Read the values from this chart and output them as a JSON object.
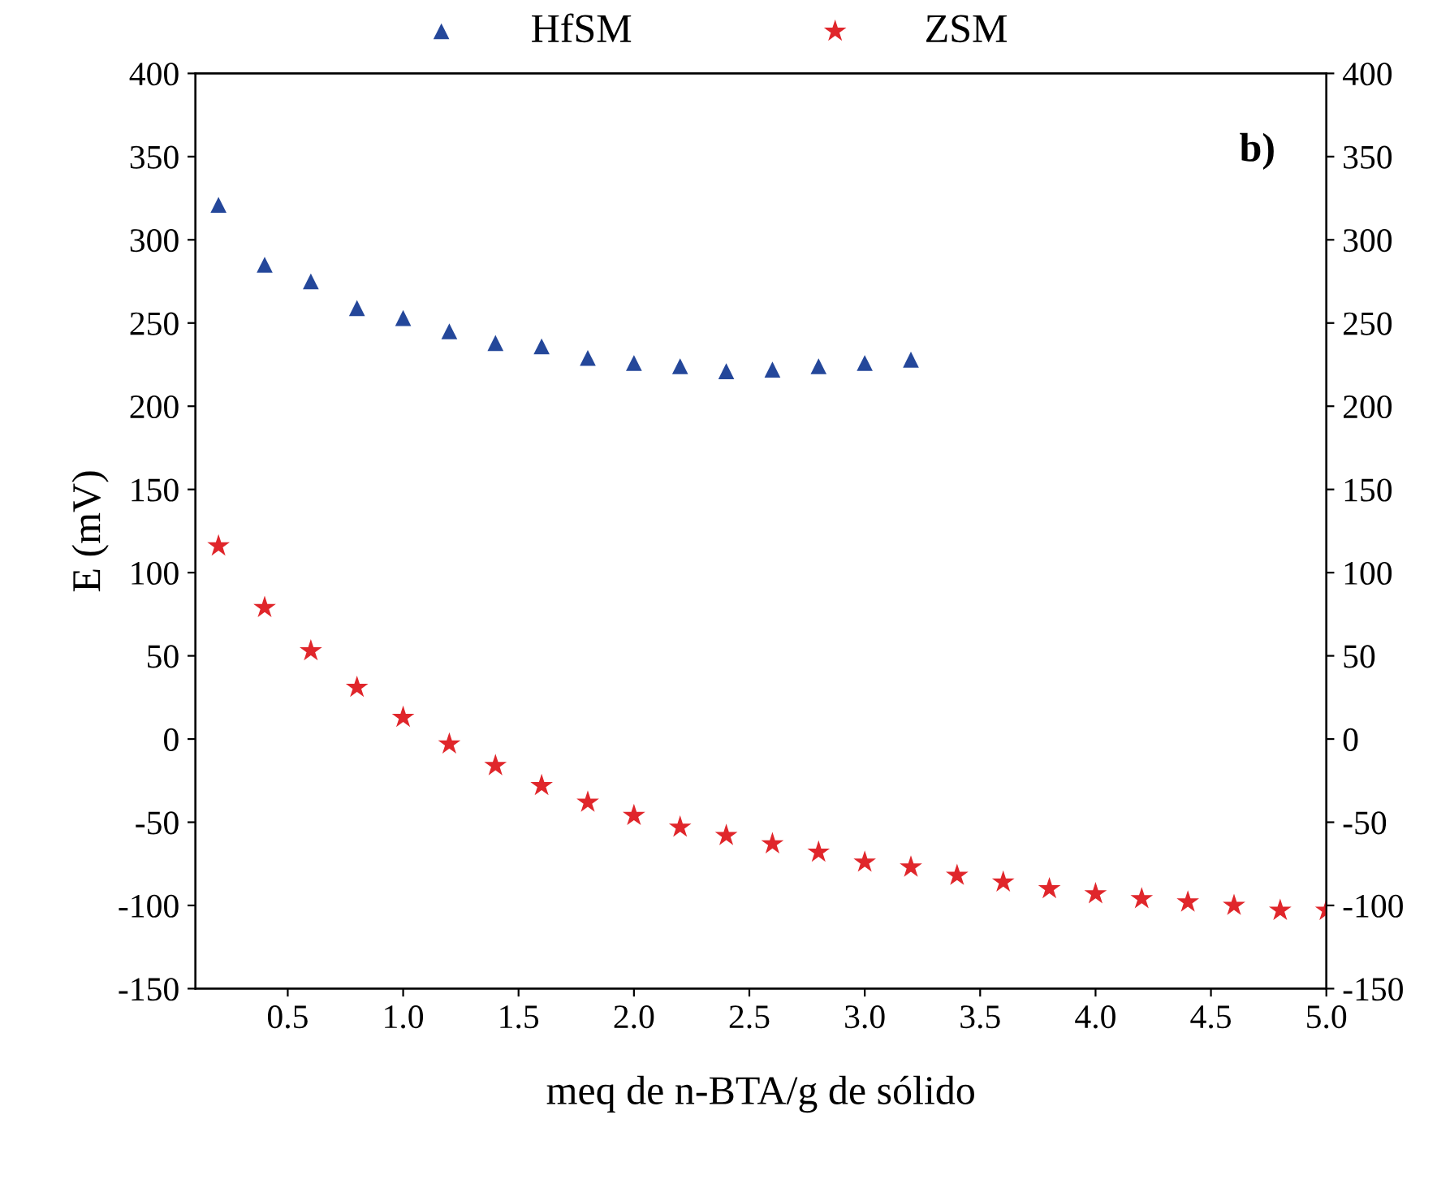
{
  "chart_data": {
    "type": "scatter",
    "xlabel": "meq de n-BTA/g de sólido",
    "ylabel": "E (mV)",
    "annotations": [
      "b)"
    ],
    "legend": "top",
    "grid": false,
    "series": [
      {
        "name": "HfSM",
        "color": "#24479a",
        "marker": "triangle",
        "x": [
          0.2,
          0.4,
          0.6,
          0.8,
          1.0,
          1.2,
          1.4,
          1.6,
          1.8,
          2.0,
          2.2,
          2.4,
          2.6,
          2.8,
          3.0,
          3.2
        ],
        "values": [
          321,
          285,
          275,
          259,
          253,
          245,
          238,
          236,
          229,
          226,
          224,
          221,
          222,
          224,
          226,
          228
        ]
      },
      {
        "name": "ZSM",
        "color": "#e0262b",
        "marker": "star",
        "x": [
          0.2,
          0.4,
          0.6,
          0.8,
          1.0,
          1.2,
          1.4,
          1.6,
          1.8,
          2.0,
          2.2,
          2.4,
          2.6,
          2.8,
          3.0,
          3.2,
          3.4,
          3.6,
          3.8,
          4.0,
          4.2,
          4.4,
          4.6,
          4.8,
          5.0
        ],
        "values": [
          116,
          79,
          53,
          31,
          13,
          -3,
          -16,
          -28,
          -38,
          -46,
          -53,
          -58,
          -63,
          -68,
          -74,
          -77,
          -82,
          -86,
          -90,
          -93,
          -96,
          -98,
          -100,
          -103,
          -103
        ]
      }
    ],
    "xlim": [
      0.1,
      5.0
    ],
    "xticks": [
      0.5,
      {
        "value": 1,
        "label": "1.0"
      },
      1.5,
      {
        "value": 2,
        "label": "2.0"
      },
      2.5,
      {
        "value": 3,
        "label": "3.0"
      },
      3.5,
      {
        "value": 4,
        "label": "4.0"
      },
      4.5,
      {
        "value": 5,
        "label": "5.0"
      }
    ],
    "ylim": [
      -150,
      400
    ],
    "yticks": [
      -150,
      -100,
      -50,
      0,
      50,
      100,
      150,
      200,
      250,
      300,
      350,
      400
    ],
    "y2lim": [
      -150,
      400
    ],
    "y2ticks": [
      -150,
      -100,
      -50,
      0,
      50,
      100,
      150,
      200,
      250,
      300,
      350,
      400
    ]
  }
}
